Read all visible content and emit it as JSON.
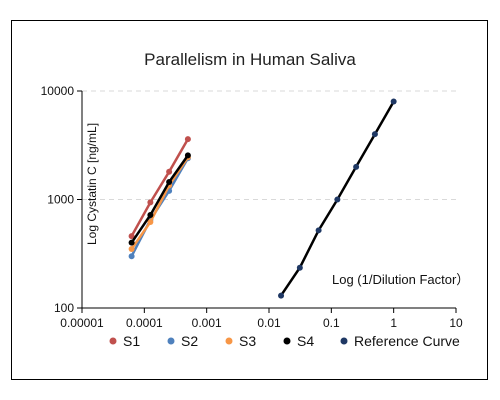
{
  "chart_data": {
    "type": "scatter",
    "title": "Parallelism in Human Saliva",
    "ylabel": "Log Cystatin C [ng/mL]",
    "annotation": "Log (1/Dilution Factor）",
    "xscale": "log",
    "yscale": "log",
    "xlim": [
      1e-05,
      10
    ],
    "ylim": [
      100,
      10000
    ],
    "x_ticks": [
      "0.00001",
      "0.0001",
      "0.001",
      "0.01",
      "0.1",
      "1",
      "10"
    ],
    "y_ticks": [
      "10000",
      "1000",
      "100"
    ],
    "x_tick_values": [
      1e-05,
      0.0001,
      0.001,
      0.01,
      0.1,
      1,
      10
    ],
    "y_tick_values": [
      10000,
      1000,
      100
    ],
    "grid": "horizontal-dashed",
    "legend_position": "bottom",
    "series": [
      {
        "name": "S1",
        "color": "#c0504d",
        "x": [
          6.25e-05,
          0.000125,
          0.00025,
          0.0005
        ],
        "y": [
          460,
          940,
          1800,
          3600
        ]
      },
      {
        "name": "S2",
        "color": "#4f81bd",
        "x": [
          6.25e-05,
          0.000125,
          0.00025,
          0.0005
        ],
        "y": [
          300,
          650,
          1200,
          2400
        ]
      },
      {
        "name": "S3",
        "color": "#f79646",
        "x": [
          6.25e-05,
          0.000125,
          0.00025,
          0.0005
        ],
        "y": [
          350,
          620,
          1350,
          2450
        ]
      },
      {
        "name": "S4",
        "color": "#000000",
        "x": [
          6.25e-05,
          0.000125,
          0.00025,
          0.0005
        ],
        "y": [
          400,
          720,
          1450,
          2550
        ]
      },
      {
        "name": "Reference Curve",
        "color": "#1f3864",
        "line_color": "#000000",
        "x": [
          0.0156,
          0.03125,
          0.0625,
          0.125,
          0.25,
          0.5,
          1
        ],
        "y": [
          130,
          235,
          520,
          1000,
          2000,
          4000,
          8000
        ]
      }
    ]
  }
}
